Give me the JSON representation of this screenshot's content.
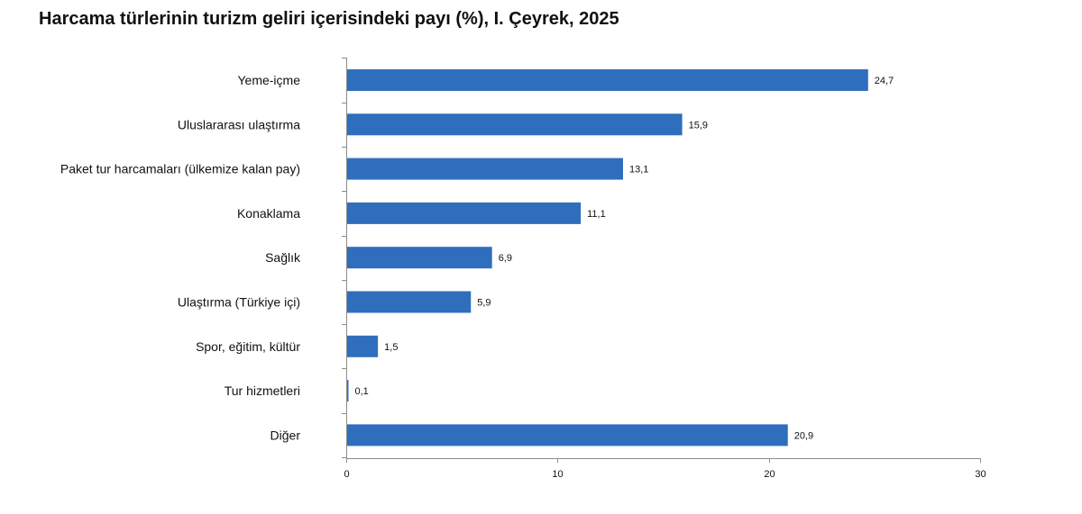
{
  "chart_data": {
    "type": "bar",
    "orientation": "horizontal",
    "title": "Harcama türlerinin turizm geliri içerisindeki payı (%), I. Çeyrek, 2025",
    "xlabel": "",
    "ylabel": "",
    "categories": [
      "Yeme-içme",
      "Uluslararası ulaştırma",
      "Paket tur harcamaları (ülkemize kalan pay)",
      "Konaklama",
      "Sağlık",
      "Ulaştırma (Türkiye içi)",
      "Spor, eğitim, kültür",
      "Tur hizmetleri",
      "Diğer"
    ],
    "values": [
      24.7,
      15.9,
      13.1,
      11.1,
      6.9,
      5.9,
      1.5,
      0.1,
      20.9
    ],
    "value_labels": [
      "24,7",
      "15,9",
      "13,1",
      "11,1",
      "6,9",
      "5,9",
      "1,5",
      "0,1",
      "20,9"
    ],
    "xlim": [
      0,
      30
    ],
    "xticks": [
      0,
      10,
      20,
      30
    ],
    "grid": false,
    "legend": "none",
    "bar_color": "#2f6ebd"
  }
}
